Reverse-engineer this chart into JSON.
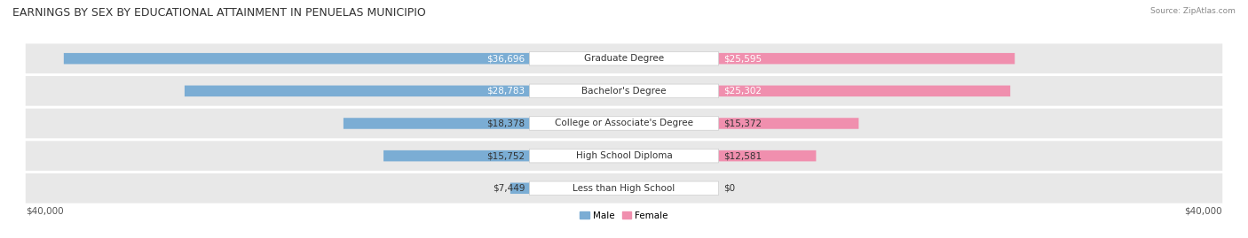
{
  "title": "EARNINGS BY SEX BY EDUCATIONAL ATTAINMENT IN PENUELAS MUNICIPIO",
  "source": "Source: ZipAtlas.com",
  "categories": [
    "Less than High School",
    "High School Diploma",
    "College or Associate's Degree",
    "Bachelor's Degree",
    "Graduate Degree"
  ],
  "male_values": [
    7449,
    15752,
    18378,
    28783,
    36696
  ],
  "female_values": [
    0,
    12581,
    15372,
    25302,
    25595
  ],
  "max_value": 40000,
  "male_color": "#7badd4",
  "female_color": "#f08fae",
  "male_label": "Male",
  "female_label": "Female",
  "bar_bg_color": "#e8e8e8",
  "row_bg_color": "#f0f0f0",
  "title_fontsize": 9,
  "label_fontsize": 7.5,
  "value_fontsize": 7.5,
  "axis_label": "$40,000",
  "bg_color": "#ffffff"
}
